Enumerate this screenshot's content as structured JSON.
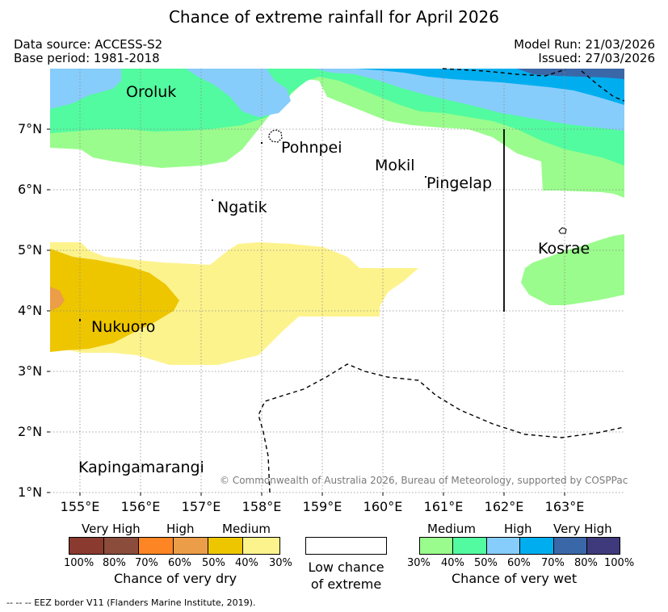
{
  "title": "Chance of extreme rainfall for April 2026",
  "meta": {
    "data_source": "Data source: ACCESS-S2",
    "base_period": "Base period: 1981-2018",
    "model_run": "Model Run: 21/03/2026",
    "issued": "Issued: 27/03/2026"
  },
  "places": {
    "oroluk": "Oroluk",
    "pohnpei": "Pohnpei",
    "mokil": "Mokil",
    "pingelap": "Pingelap",
    "ngatik": "Ngatik",
    "kosrae": "Kosrae",
    "nukuoro": "Nukuoro",
    "kapingamarangi": "Kapingamarangi"
  },
  "copyright": "© Commonwealth of Australia 2026, Bureau of Meteorology, supported by COSPPac",
  "axes": {
    "lat_labels": [
      "7°N",
      "6°N",
      "5°N",
      "4°N",
      "3°N",
      "2°N",
      "1°N"
    ],
    "lon_labels": [
      "155°E",
      "156°E",
      "157°E",
      "158°E",
      "159°E",
      "160°E",
      "161°E",
      "162°E",
      "163°E"
    ]
  },
  "legend": {
    "dry": {
      "categories": [
        "Very High",
        "High",
        "Medium"
      ],
      "percents": [
        "100%",
        "80%",
        "70%",
        "60%",
        "50%",
        "40%",
        "30%"
      ],
      "caption": "Chance of very dry",
      "colors": [
        "#8b3a2f",
        "#8b4c3b",
        "#fd8523",
        "#eb9d47",
        "#edc600",
        "#fdf38d"
      ]
    },
    "low": {
      "line1": "Low chance",
      "line2": "of extreme"
    },
    "wet": {
      "categories": [
        "Medium",
        "High",
        "Very High"
      ],
      "percents": [
        "30%",
        "40%",
        "50%",
        "60%",
        "70%",
        "80%",
        "100%"
      ],
      "caption": "Chance of very wet",
      "colors": [
        "#9afc8c",
        "#52fb9f",
        "#87cdfb",
        "#00aeef",
        "#3a67a8",
        "#3f3a7c"
      ]
    }
  },
  "footnote": "-- -- -- EEZ border V11 (Flanders Marine Institute, 2019)."
}
